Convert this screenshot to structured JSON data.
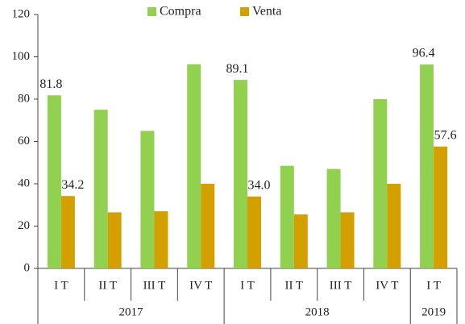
{
  "chart_data": {
    "type": "bar",
    "groups": [
      {
        "name": "2017",
        "categories": [
          "I T",
          "II T",
          "III T",
          "IV T"
        ]
      },
      {
        "name": "2018",
        "categories": [
          "I T",
          "II T",
          "III T",
          "IV T"
        ]
      },
      {
        "name": "2019",
        "categories": [
          "I T"
        ]
      }
    ],
    "series": [
      {
        "name": "Compra",
        "color": "#92d050",
        "values": [
          81.8,
          75,
          65,
          96.5,
          89.1,
          48.5,
          47,
          80,
          96.4
        ],
        "value_labels": [
          "81.8",
          null,
          null,
          null,
          "89.1",
          null,
          null,
          null,
          "96.4"
        ]
      },
      {
        "name": "Venta",
        "color": "#d4a000",
        "values": [
          34.2,
          26.5,
          27,
          40,
          34.0,
          25.5,
          26.5,
          40,
          57.6
        ],
        "value_labels": [
          "34.2",
          null,
          null,
          null,
          "34.0",
          null,
          null,
          null,
          "57.6"
        ]
      }
    ],
    "ylim": [
      0,
      120
    ],
    "yticks": [
      0,
      20,
      40,
      60,
      80,
      100,
      120
    ],
    "grid": false,
    "legend": "top"
  }
}
